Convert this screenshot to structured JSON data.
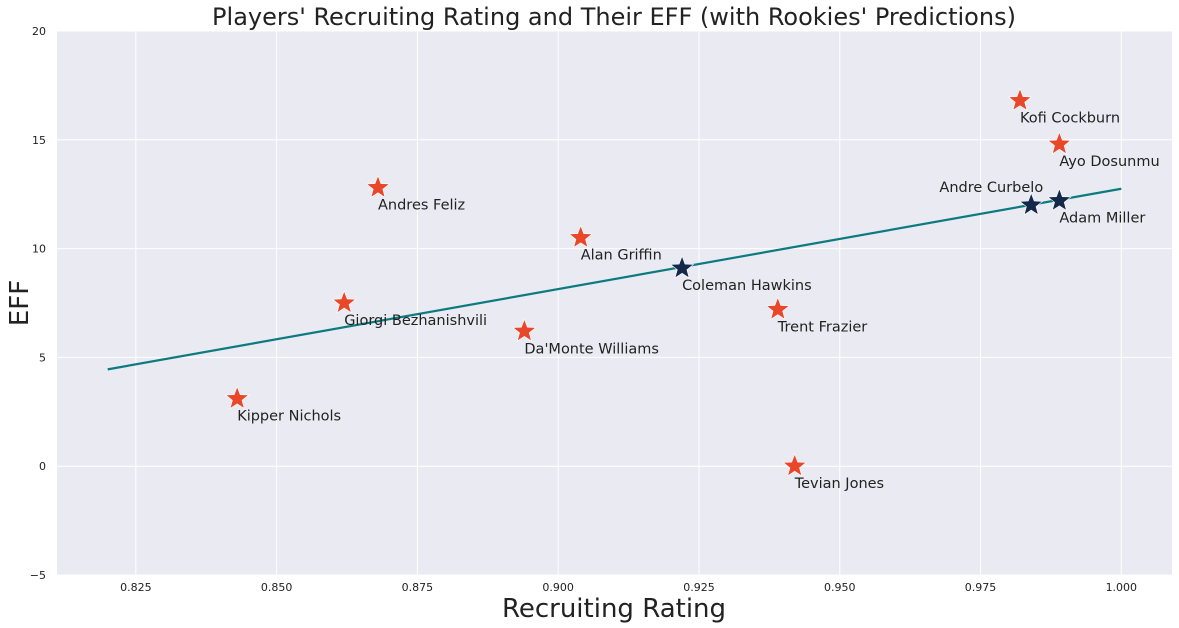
{
  "chart_data": {
    "type": "scatter",
    "title": "Players' Recruiting Rating and Their EFF (with Rookies' Predictions)",
    "xlabel": "Recruiting Rating",
    "ylabel": "EFF",
    "xlim": [
      0.811,
      1.009
    ],
    "ylim": [
      -5,
      20
    ],
    "x_ticks": [
      0.825,
      0.85,
      0.875,
      0.9,
      0.925,
      0.95,
      0.975,
      1.0
    ],
    "x_tick_labels": [
      "0.825",
      "0.850",
      "0.875",
      "0.900",
      "0.925",
      "0.950",
      "0.975",
      "1.000"
    ],
    "y_ticks": [
      -5,
      0,
      5,
      10,
      15,
      20
    ],
    "y_tick_labels": [
      "−5",
      "0",
      "5",
      "10",
      "15",
      "20"
    ],
    "grid": true,
    "colors": {
      "background": "#eaeaf2",
      "grid": "#ffffff",
      "players": "#e8472a",
      "rookies": "#14284b",
      "trend": "#0b7b7f"
    },
    "series": [
      {
        "marker": "star-icon",
        "points": [
          {
            "label": "Kofi Cockburn",
            "x": 0.982,
            "y": 16.8
          },
          {
            "label": "Ayo Dosunmu",
            "x": 0.989,
            "y": 14.8
          },
          {
            "label": "Andres Feliz",
            "x": 0.868,
            "y": 12.8
          },
          {
            "label": "Alan Griffin",
            "x": 0.904,
            "y": 10.5
          },
          {
            "label": "Giorgi Bezhanishvili",
            "x": 0.862,
            "y": 7.5
          },
          {
            "label": "Trent Frazier",
            "x": 0.939,
            "y": 7.2
          },
          {
            "label": "Da'Monte Williams",
            "x": 0.894,
            "y": 6.2
          },
          {
            "label": "Kipper Nichols",
            "x": 0.843,
            "y": 3.1
          },
          {
            "label": "Tevian Jones",
            "x": 0.942,
            "y": 0.0
          }
        ]
      },
      {
        "marker": "star-icon",
        "points": [
          {
            "label": "Andre Curbelo",
            "x": 0.984,
            "y": 12.0
          },
          {
            "label": "Adam Miller",
            "x": 0.989,
            "y": 12.2
          },
          {
            "label": "Coleman Hawkins",
            "x": 0.922,
            "y": 9.1
          }
        ]
      }
    ],
    "trend_line": {
      "x": [
        0.82,
        1.0
      ],
      "y": [
        4.45,
        12.75
      ]
    }
  }
}
